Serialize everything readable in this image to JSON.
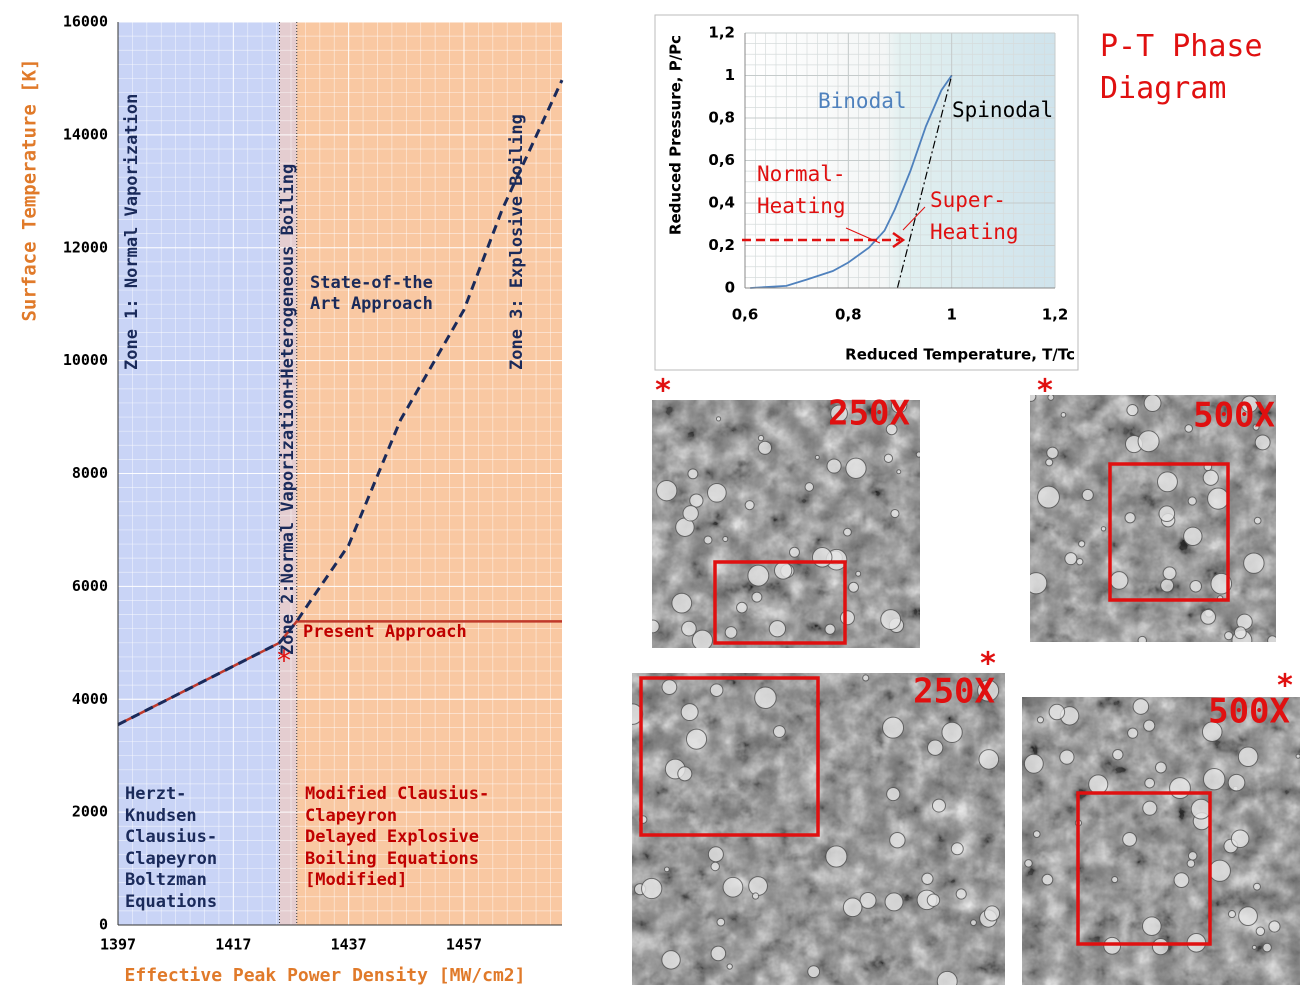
{
  "chart_data": [
    {
      "type": "line",
      "x_label": "Effective Peak Power Density [MW/cm2]",
      "y_label": "Surface Temperature [K]",
      "xlim": [
        1397,
        1474
      ],
      "xticks": [
        1397,
        1417,
        1437,
        1457
      ],
      "ylim": [
        0,
        16000
      ],
      "yticks": [
        0,
        2000,
        4000,
        6000,
        8000,
        10000,
        12000,
        14000,
        16000
      ],
      "grid": true,
      "x": [
        1397,
        1405,
        1415,
        1425,
        1428,
        1430.5,
        1437,
        1446,
        1457,
        1463.6,
        1474
      ],
      "series": [
        {
          "name": "Present Approach",
          "color": "#c0392b",
          "style": "solid",
          "values": [
            3550,
            3964,
            4482,
            5000,
            5380,
            5380,
            5380,
            5380,
            5380,
            5380,
            5380
          ]
        },
        {
          "name": "State-of-the\nArt Approach",
          "color": "#1a2a5a",
          "style": "dashed",
          "values": [
            3550,
            3964,
            4482,
            5000,
            5380,
            5760,
            6730,
            8950,
            10900,
            12670,
            14970
          ]
        }
      ],
      "zones": [
        {
          "label": "Zone 1: Normal Vaporization",
          "from": 1397,
          "to": 1425,
          "color": "#c9d4f6"
        },
        {
          "label": "Zone 2:Normal Vaporization+Heterogeneous Boiling",
          "from": 1425,
          "to": 1428,
          "color": "#e4cdd0"
        },
        {
          "label": "Zone 3: Explosive Boiling",
          "from": 1428,
          "to": 1474,
          "color": "#f9c8a2"
        }
      ],
      "zone_notes": [
        {
          "text": "Herzt-\nKnudsen\nClausius-\nClapeyron\nBoltzman\nEquations",
          "color": "#1a2a5a"
        },
        {
          "text": "Modified Clausius-\nClapeyron\nDelayed Explosive\nBoiling Equations\n[Modified]",
          "color": "#c00000"
        }
      ],
      "annotation": "*"
    },
    {
      "type": "line",
      "title": "P-T Phase\nDiagram",
      "x_label": "Reduced Temperature, T/Tc",
      "y_label": "Reduced Pressure, P/Pc",
      "xlim": [
        0.6,
        1.2
      ],
      "xticks": [
        {
          "value": 0.6,
          "label": "0,6"
        },
        {
          "value": 0.8,
          "label": "0,8"
        },
        1,
        {
          "value": 1.2,
          "label": "1,2"
        }
      ],
      "ylim": [
        0,
        1.2
      ],
      "yticks": [
        0,
        {
          "value": 0.2,
          "label": "0,2"
        },
        {
          "value": 0.4,
          "label": "0,4"
        },
        {
          "value": 0.6,
          "label": "0,6"
        },
        {
          "value": 0.8,
          "label": "0,8"
        },
        1,
        {
          "value": 1.2,
          "label": "1,2"
        }
      ],
      "grid": true,
      "series": [
        {
          "name": "Binodal",
          "color": "#4f81bd",
          "style": "solid",
          "x": [
            0.61,
            0.68,
            0.72,
            0.77,
            0.8,
            0.84,
            0.87,
            0.89,
            0.92,
            0.95,
            0.98,
            1
          ],
          "values": [
            0,
            0.01,
            0.04,
            0.08,
            0.12,
            0.19,
            0.27,
            0.37,
            0.55,
            0.76,
            0.93,
            1
          ]
        },
        {
          "name": "Spinodal",
          "color": "#000000",
          "style": "dashdot",
          "x": [
            0.895,
            1
          ],
          "values": [
            0,
            1
          ]
        }
      ],
      "annotations": [
        "Normal-\nHeating",
        "Super-\nHeating"
      ]
    }
  ],
  "micrographs": [
    {
      "magnification": "250X",
      "marker": "*"
    },
    {
      "magnification": "500X",
      "marker": "*"
    },
    {
      "magnification": "250X",
      "marker": "*"
    },
    {
      "magnification": "500X",
      "marker": "*"
    }
  ]
}
